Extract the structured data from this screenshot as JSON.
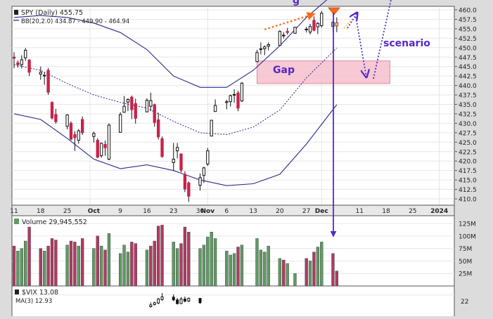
{
  "main": {
    "symbol_line": "SPY (Daily) 455.75",
    "bb_line": "BB(20,2.0) 434.87 - 449.90 - 464.94",
    "gap_label": "Gap",
    "scenario_label": "scenario",
    "top_cut_label": "g",
    "y_ticks": [
      "460.0",
      "457.5",
      "455.0",
      "452.5",
      "450.0",
      "447.5",
      "445.0",
      "442.5",
      "440.0",
      "437.5",
      "435.0",
      "432.5",
      "430.0",
      "427.5",
      "425.0",
      "422.5",
      "420.0",
      "417.5",
      "415.0",
      "412.5",
      "410.0"
    ],
    "x_ticks": [
      "11",
      "18",
      "25",
      "Oct",
      "9",
      "16",
      "23",
      "30",
      "Nov",
      "6",
      "13",
      "20",
      "27",
      "Dec",
      "11",
      "18",
      "25",
      "2024"
    ]
  },
  "volume_panel": {
    "label": "Volume 29,945,552",
    "y_ticks": [
      "125M",
      "100M",
      "75M",
      "50M",
      "25M"
    ]
  },
  "vix_panel": {
    "label": "$VIX 13.08",
    "ma_label": "MA(3) 12.93",
    "y_tick": "22"
  },
  "colors": {
    "up_candle": "#ffffff",
    "down_candle": "#c8234a",
    "up_volume": "#5f9a64",
    "down_volume": "#b03a62",
    "bands": "#2a2a8a",
    "annotation": "#5528c8",
    "gap_fill": "#f5c0cc",
    "projection": "#ff6a1a",
    "background": "#ffffff"
  },
  "chart_data": {
    "type": "candlestick",
    "xlim": [
      "2023-09-11",
      "2024-01-02"
    ],
    "ylim": [
      410.0,
      460.0
    ],
    "candles": [
      {
        "date": "2023-09-11",
        "o": 447.5,
        "h": 448.8,
        "c": 447.2,
        "l": 444.6
      },
      {
        "date": "2023-09-12",
        "o": 446.0,
        "h": 446.6,
        "c": 445.5,
        "l": 444.7
      },
      {
        "date": "2023-09-13",
        "o": 445.5,
        "h": 448.0,
        "c": 446.8,
        "l": 444.5
      },
      {
        "date": "2023-09-14",
        "o": 447.3,
        "h": 449.9,
        "c": 449.3,
        "l": 446.5
      },
      {
        "date": "2023-09-15",
        "o": 446.7,
        "h": 447.0,
        "c": 443.5,
        "l": 442.5
      },
      {
        "date": "2023-09-18",
        "o": 443.0,
        "h": 445.0,
        "c": 443.5,
        "l": 441.5
      },
      {
        "date": "2023-09-19",
        "o": 442.5,
        "h": 443.5,
        "c": 442.7,
        "l": 440.2
      },
      {
        "date": "2023-09-20",
        "o": 444.0,
        "h": 444.6,
        "c": 438.2,
        "l": 437.5
      },
      {
        "date": "2023-09-21",
        "o": 435.5,
        "h": 435.8,
        "c": 431.4,
        "l": 431.0
      },
      {
        "date": "2023-09-22",
        "o": 432.3,
        "h": 433.8,
        "c": 430.4,
        "l": 429.9
      },
      {
        "date": "2023-09-25",
        "o": 429.2,
        "h": 432.4,
        "c": 432.2,
        "l": 428.4
      },
      {
        "date": "2023-09-26",
        "o": 430.0,
        "h": 430.5,
        "c": 425.8,
        "l": 425.5
      },
      {
        "date": "2023-09-27",
        "o": 427.0,
        "h": 427.9,
        "c": 426.2,
        "l": 422.7
      },
      {
        "date": "2023-09-28",
        "o": 425.5,
        "h": 428.5,
        "c": 428.0,
        "l": 424.6
      },
      {
        "date": "2023-09-29",
        "o": 431.0,
        "h": 431.8,
        "c": 427.5,
        "l": 426.9
      },
      {
        "date": "2023-10-02",
        "o": 426.5,
        "h": 427.8,
        "c": 427.3,
        "l": 424.9
      },
      {
        "date": "2023-10-03",
        "o": 425.5,
        "h": 426.0,
        "c": 421.0,
        "l": 420.8
      },
      {
        "date": "2023-10-04",
        "o": 421.4,
        "h": 424.9,
        "c": 424.7,
        "l": 420.9
      },
      {
        "date": "2023-10-05",
        "o": 424.4,
        "h": 425.4,
        "c": 423.5,
        "l": 421.4
      },
      {
        "date": "2023-10-06",
        "o": 420.5,
        "h": 430.0,
        "c": 429.5,
        "l": 420.2
      },
      {
        "date": "2023-10-09",
        "o": 427.6,
        "h": 432.9,
        "c": 432.3,
        "l": 427.5
      },
      {
        "date": "2023-10-10",
        "o": 432.9,
        "h": 437.2,
        "c": 434.5,
        "l": 432.8
      },
      {
        "date": "2023-10-11",
        "o": 435.6,
        "h": 436.6,
        "c": 436.3,
        "l": 433.2
      },
      {
        "date": "2023-10-12",
        "o": 436.9,
        "h": 437.3,
        "c": 433.6,
        "l": 431.1
      },
      {
        "date": "2023-10-13",
        "o": 435.2,
        "h": 436.5,
        "c": 431.3,
        "l": 429.9
      },
      {
        "date": "2023-10-16",
        "o": 433.0,
        "h": 436.6,
        "c": 436.1,
        "l": 432.9
      },
      {
        "date": "2023-10-17",
        "o": 434.5,
        "h": 438.1,
        "c": 436.0,
        "l": 433.2
      },
      {
        "date": "2023-10-18",
        "o": 434.9,
        "h": 435.2,
        "c": 430.2,
        "l": 429.1
      },
      {
        "date": "2023-10-19",
        "o": 430.9,
        "h": 432.8,
        "c": 426.4,
        "l": 425.7
      },
      {
        "date": "2023-10-20",
        "o": 425.9,
        "h": 426.5,
        "c": 421.2,
        "l": 420.9
      },
      {
        "date": "2023-10-23",
        "o": 419.6,
        "h": 424.8,
        "c": 420.5,
        "l": 417.5
      },
      {
        "date": "2023-10-24",
        "o": 422.7,
        "h": 424.8,
        "c": 423.6,
        "l": 420.7
      },
      {
        "date": "2023-10-25",
        "o": 421.9,
        "h": 421.9,
        "c": 417.6,
        "l": 417.0
      },
      {
        "date": "2023-10-26",
        "o": 416.5,
        "h": 417.3,
        "c": 412.6,
        "l": 411.8
      },
      {
        "date": "2023-10-27",
        "o": 414.2,
        "h": 414.6,
        "c": 410.7,
        "l": 409.2
      },
      {
        "date": "2023-10-30",
        "o": 413.6,
        "h": 416.7,
        "c": 415.6,
        "l": 412.2
      },
      {
        "date": "2023-10-31",
        "o": 416.2,
        "h": 418.5,
        "c": 418.2,
        "l": 414.2
      },
      {
        "date": "2023-11-01",
        "o": 419.2,
        "h": 423.5,
        "c": 422.7,
        "l": 418.7
      },
      {
        "date": "2023-11-02",
        "o": 426.6,
        "h": 430.9,
        "c": 430.8,
        "l": 426.6
      },
      {
        "date": "2023-11-03",
        "o": 433.1,
        "h": 436.3,
        "c": 434.7,
        "l": 433.0
      },
      {
        "date": "2023-11-06",
        "o": 435.5,
        "h": 436.2,
        "c": 435.7,
        "l": 433.7
      },
      {
        "date": "2023-11-07",
        "o": 435.7,
        "h": 437.6,
        "c": 437.3,
        "l": 434.4
      },
      {
        "date": "2023-11-08",
        "o": 437.6,
        "h": 439.0,
        "c": 437.6,
        "l": 435.4
      },
      {
        "date": "2023-11-09",
        "o": 438.0,
        "h": 438.6,
        "c": 434.0,
        "l": 433.2
      },
      {
        "date": "2023-11-10",
        "o": 435.9,
        "h": 440.9,
        "c": 440.6,
        "l": 435.6
      },
      {
        "date": "2023-11-14",
        "o": 446.3,
        "h": 449.4,
        "c": 448.7,
        "l": 446.1
      },
      {
        "date": "2023-11-15",
        "o": 449.5,
        "h": 451.4,
        "c": 449.7,
        "l": 448.2
      },
      {
        "date": "2023-11-16",
        "o": 449.7,
        "h": 450.6,
        "c": 450.2,
        "l": 448.0
      },
      {
        "date": "2023-11-17",
        "o": 450.4,
        "h": 451.4,
        "c": 450.8,
        "l": 449.3
      },
      {
        "date": "2023-11-20",
        "o": 450.6,
        "h": 454.6,
        "c": 454.3,
        "l": 450.6
      },
      {
        "date": "2023-11-21",
        "o": 453.2,
        "h": 454.1,
        "c": 453.3,
        "l": 452.4
      },
      {
        "date": "2023-11-22",
        "o": 454.3,
        "h": 455.2,
        "c": 454.0,
        "l": 453.5
      },
      {
        "date": "2023-11-24",
        "o": 453.8,
        "h": 455.5,
        "c": 455.4,
        "l": 453.7
      },
      {
        "date": "2023-11-27",
        "o": 454.7,
        "h": 455.5,
        "c": 454.9,
        "l": 454.0
      },
      {
        "date": "2023-11-28",
        "o": 454.1,
        "h": 456.3,
        "c": 455.6,
        "l": 453.5
      },
      {
        "date": "2023-11-29",
        "o": 457.2,
        "h": 458.3,
        "c": 454.6,
        "l": 454.3
      },
      {
        "date": "2023-11-30",
        "o": 455.5,
        "h": 456.8,
        "c": 456.4,
        "l": 453.6
      },
      {
        "date": "2023-12-01",
        "o": 455.8,
        "h": 459.7,
        "c": 459.1,
        "l": 455.3
      },
      {
        "date": "2023-12-04",
        "o": 455.6,
        "h": 456.9,
        "c": 456.7,
        "l": 454.2
      },
      {
        "date": "2023-12-05",
        "o": 456.6,
        "h": 458.0,
        "c": 455.75,
        "l": 454.1
      }
    ],
    "bollinger": {
      "dates": [
        "2023-09-11",
        "2023-09-18",
        "2023-09-25",
        "2023-10-02",
        "2023-10-09",
        "2023-10-16",
        "2023-10-23",
        "2023-10-30",
        "2023-11-06",
        "2023-11-13",
        "2023-11-20",
        "2023-11-27",
        "2023-12-05"
      ],
      "upper": [
        458.0,
        458.5,
        458.0,
        456.5,
        454.0,
        449.5,
        442.5,
        439.5,
        439.5,
        444.0,
        450.5,
        458.0,
        464.9
      ],
      "middle": [
        445.5,
        444.0,
        440.5,
        437.5,
        435.5,
        434.0,
        430.5,
        427.5,
        427.0,
        429.0,
        433.5,
        442.0,
        449.9
      ],
      "lower": [
        432.5,
        431.0,
        426.0,
        420.5,
        418.0,
        419.0,
        417.5,
        415.0,
        413.5,
        414.0,
        416.5,
        424.5,
        434.9
      ]
    },
    "gap_zone": {
      "x0": "2023-11-14",
      "x1": "2023-12-19",
      "y0": 440.5,
      "y1": 446.5
    },
    "volume": [
      {
        "date": "2023-09-11",
        "v": 80,
        "up": false
      },
      {
        "date": "2023-09-12",
        "v": 70,
        "up": true
      },
      {
        "date": "2023-09-13",
        "v": 75,
        "up": true
      },
      {
        "date": "2023-09-14",
        "v": 90,
        "up": true
      },
      {
        "date": "2023-09-15",
        "v": 118,
        "up": false
      },
      {
        "date": "2023-09-18",
        "v": 75,
        "up": false
      },
      {
        "date": "2023-09-19",
        "v": 70,
        "up": true
      },
      {
        "date": "2023-09-20",
        "v": 80,
        "up": false
      },
      {
        "date": "2023-09-21",
        "v": 95,
        "up": false
      },
      {
        "date": "2023-09-22",
        "v": 92,
        "up": false
      },
      {
        "date": "2023-09-25",
        "v": 82,
        "up": true
      },
      {
        "date": "2023-09-26",
        "v": 90,
        "up": false
      },
      {
        "date": "2023-09-27",
        "v": 88,
        "up": false
      },
      {
        "date": "2023-09-28",
        "v": 80,
        "up": true
      },
      {
        "date": "2023-09-29",
        "v": 95,
        "up": false
      },
      {
        "date": "2023-10-02",
        "v": 75,
        "up": true
      },
      {
        "date": "2023-10-03",
        "v": 100,
        "up": false
      },
      {
        "date": "2023-10-04",
        "v": 80,
        "up": true
      },
      {
        "date": "2023-10-05",
        "v": 72,
        "up": false
      },
      {
        "date": "2023-10-06",
        "v": 105,
        "up": true
      },
      {
        "date": "2023-10-09",
        "v": 65,
        "up": true
      },
      {
        "date": "2023-10-10",
        "v": 82,
        "up": true
      },
      {
        "date": "2023-10-11",
        "v": 68,
        "up": true
      },
      {
        "date": "2023-10-12",
        "v": 88,
        "up": false
      },
      {
        "date": "2023-10-13",
        "v": 85,
        "up": false
      },
      {
        "date": "2023-10-16",
        "v": 72,
        "up": true
      },
      {
        "date": "2023-10-17",
        "v": 80,
        "up": false
      },
      {
        "date": "2023-10-18",
        "v": 90,
        "up": false
      },
      {
        "date": "2023-10-19",
        "v": 120,
        "up": false
      },
      {
        "date": "2023-10-20",
        "v": 122,
        "up": false
      },
      {
        "date": "2023-10-23",
        "v": 88,
        "up": true
      },
      {
        "date": "2023-10-24",
        "v": 75,
        "up": true
      },
      {
        "date": "2023-10-25",
        "v": 85,
        "up": false
      },
      {
        "date": "2023-10-26",
        "v": 118,
        "up": false
      },
      {
        "date": "2023-10-27",
        "v": 108,
        "up": false
      },
      {
        "date": "2023-10-30",
        "v": 75,
        "up": true
      },
      {
        "date": "2023-10-31",
        "v": 82,
        "up": true
      },
      {
        "date": "2023-11-01",
        "v": 98,
        "up": true
      },
      {
        "date": "2023-11-02",
        "v": 108,
        "up": true
      },
      {
        "date": "2023-11-03",
        "v": 95,
        "up": true
      },
      {
        "date": "2023-11-06",
        "v": 70,
        "up": true
      },
      {
        "date": "2023-11-07",
        "v": 62,
        "up": true
      },
      {
        "date": "2023-11-08",
        "v": 65,
        "up": true
      },
      {
        "date": "2023-11-09",
        "v": 78,
        "up": false
      },
      {
        "date": "2023-11-10",
        "v": 82,
        "up": true
      },
      {
        "date": "2023-11-14",
        "v": 95,
        "up": true
      },
      {
        "date": "2023-11-15",
        "v": 72,
        "up": true
      },
      {
        "date": "2023-11-16",
        "v": 68,
        "up": true
      },
      {
        "date": "2023-11-17",
        "v": 80,
        "up": true
      },
      {
        "date": "2023-11-20",
        "v": 55,
        "up": true
      },
      {
        "date": "2023-11-21",
        "v": 52,
        "up": false
      },
      {
        "date": "2023-11-22",
        "v": 45,
        "up": true
      },
      {
        "date": "2023-11-24",
        "v": 25,
        "up": true
      },
      {
        "date": "2023-11-27",
        "v": 55,
        "up": false
      },
      {
        "date": "2023-11-28",
        "v": 50,
        "up": true
      },
      {
        "date": "2023-11-29",
        "v": 68,
        "up": false
      },
      {
        "date": "2023-11-30",
        "v": 78,
        "up": true
      },
      {
        "date": "2023-12-01",
        "v": 88,
        "up": true
      },
      {
        "date": "2023-12-04",
        "v": 65,
        "up": false
      },
      {
        "date": "2023-12-05",
        "v": 30,
        "up": false
      }
    ],
    "volume_ylim": [
      0,
      135
    ],
    "vix_candles": [
      {
        "date": "2023-10-17",
        "o": 18.2,
        "h": 19.6,
        "c": 18.8,
        "l": 17.9
      },
      {
        "date": "2023-10-18",
        "o": 18.9,
        "h": 19.8,
        "c": 19.5,
        "l": 18.6
      },
      {
        "date": "2023-10-19",
        "o": 19.4,
        "h": 21.0,
        "c": 20.7,
        "l": 19.0
      },
      {
        "date": "2023-10-20",
        "o": 20.5,
        "h": 22.6,
        "c": 21.4,
        "l": 20.1
      },
      {
        "date": "2023-10-23",
        "o": 21.3,
        "h": 22.2,
        "c": 20.4,
        "l": 20.0
      },
      {
        "date": "2023-10-24",
        "o": 20.4,
        "h": 21.0,
        "c": 19.2,
        "l": 18.9
      },
      {
        "date": "2023-10-25",
        "o": 19.2,
        "h": 21.3,
        "c": 20.7,
        "l": 19.1
      },
      {
        "date": "2023-10-26",
        "o": 20.7,
        "h": 21.5,
        "c": 20.0,
        "l": 19.6
      },
      {
        "date": "2023-10-27",
        "o": 20.0,
        "h": 21.2,
        "c": 20.9,
        "l": 19.7
      },
      {
        "date": "2023-10-30",
        "o": 20.9,
        "h": 21.0,
        "c": 19.5,
        "l": 19.1
      }
    ],
    "vix_ylim": [
      14,
      24
    ]
  }
}
